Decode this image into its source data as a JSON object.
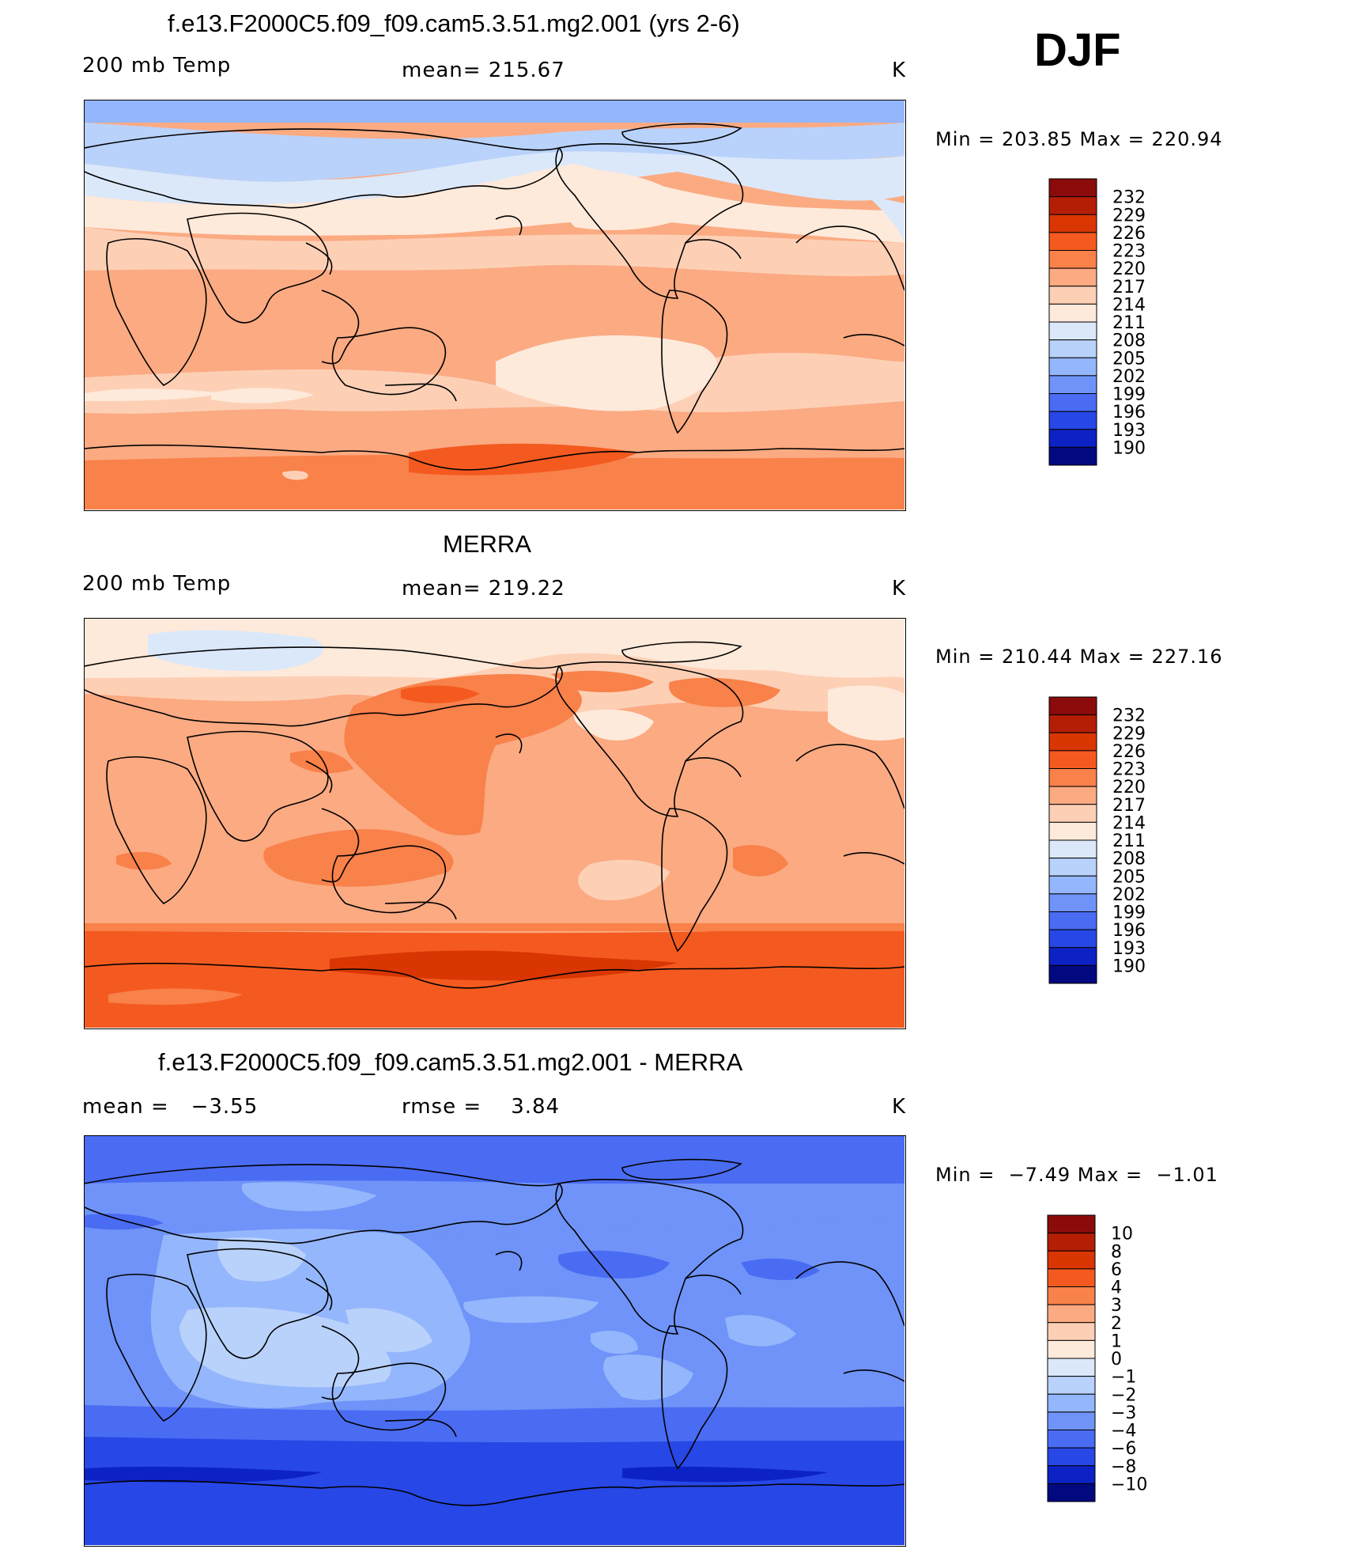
{
  "season": "DJF",
  "panels": [
    {
      "id": "model",
      "title": "f.e13.F2000C5.f09_f09.cam5.3.51.mg2.001 (yrs 2-6)",
      "left_label": "200 mb Temp",
      "center_label": "mean= 215.67",
      "right_label": "K",
      "minmax": "Min = 203.85 Max = 220.94",
      "colorbar_labels": [
        "232",
        "229",
        "226",
        "223",
        "220",
        "217",
        "214",
        "211",
        "208",
        "205",
        "202",
        "199",
        "196",
        "193",
        "190"
      ]
    },
    {
      "id": "obs",
      "title": "MERRA",
      "left_label": "200 mb Temp",
      "center_label": "mean= 219.22",
      "right_label": "K",
      "minmax": "Min = 210.44 Max = 227.16",
      "colorbar_labels": [
        "232",
        "229",
        "226",
        "223",
        "220",
        "217",
        "214",
        "211",
        "208",
        "205",
        "202",
        "199",
        "196",
        "193",
        "190"
      ]
    },
    {
      "id": "diff",
      "title": "f.e13.F2000C5.f09_f09.cam5.3.51.mg2.001 - MERRA",
      "left_label": "mean =   −3.55",
      "center_label": "rmse =    3.84",
      "right_label": "K",
      "minmax": "Min =  −7.49 Max =  −1.01",
      "colorbar_labels": [
        "10",
        "8",
        "6",
        "4",
        "3",
        "2",
        "1",
        "0",
        "−1",
        "−2",
        "−3",
        "−4",
        "−6",
        "−8",
        "−10"
      ]
    }
  ],
  "colormap": [
    "#8b0b0b",
    "#b31e04",
    "#d93604",
    "#f45a1f",
    "#f9814a",
    "#fbaa82",
    "#fdd0b6",
    "#feeadb",
    "#dbe8fa",
    "#b9d2fb",
    "#94b6fc",
    "#6f93f8",
    "#4a6cf3",
    "#2747e6",
    "#0d22c4",
    "#02087e"
  ]
}
